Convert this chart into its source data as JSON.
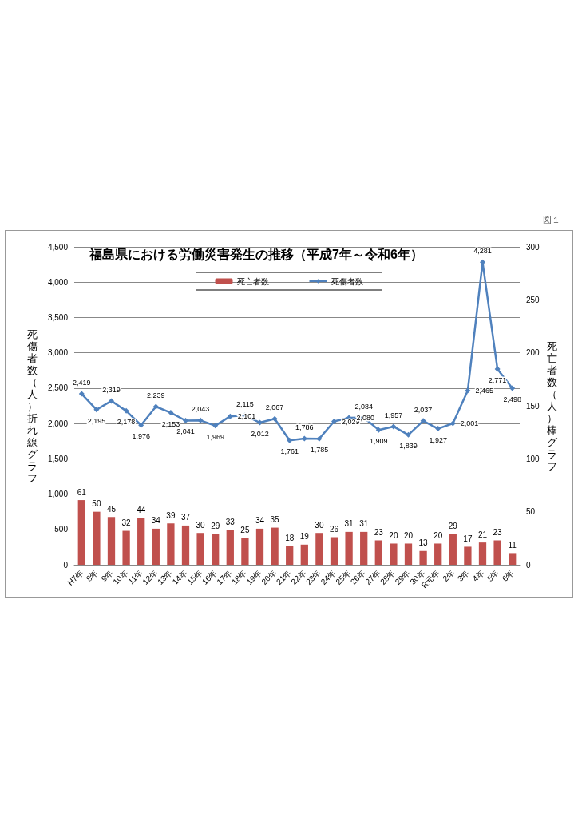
{
  "chart_data": {
    "type": "bar",
    "title": "福島県における労働災害発生の推移（平成7年～令和6年）",
    "categories": [
      "H7年",
      "8年",
      "9年",
      "10年",
      "11年",
      "12年",
      "13年",
      "14年",
      "15年",
      "16年",
      "17年",
      "18年",
      "19年",
      "20年",
      "21年",
      "22年",
      "23年",
      "24年",
      "25年",
      "26年",
      "27年",
      "28年",
      "29年",
      "30年",
      "R元年",
      "2年",
      "3年",
      "4年",
      "5年",
      "6年"
    ],
    "series": [
      {
        "name": "死亡者数",
        "axis": "y2",
        "color": "#c0504d",
        "values": [
          61,
          50,
          45,
          32,
          44,
          34,
          39,
          37,
          30,
          29,
          33,
          25,
          34,
          35,
          18,
          19,
          30,
          26,
          31,
          31,
          23,
          20,
          20,
          13,
          20,
          29,
          17,
          21,
          23,
          11
        ]
      },
      {
        "name": "死傷者数",
        "type": "line",
        "color": "#4f81bd",
        "values": [
          2419,
          2195,
          2319,
          2178,
          1976,
          2239,
          2153,
          2041,
          2043,
          1969,
          2101,
          2115,
          2012,
          2067,
          1761,
          1786,
          1785,
          2029,
          2080,
          2084,
          1909,
          1957,
          1839,
          2037,
          1927,
          2001,
          2465,
          4281,
          2771,
          2498
        ],
        "value_labels": [
          "2,419",
          "2,195",
          "2,319",
          "2,178",
          "1,976",
          "2,239",
          "2,153",
          "2,041",
          "2,043",
          "1,969",
          "2,101",
          "2,115",
          "2,012",
          "2,067",
          "1,761",
          "1,786",
          "1,785",
          "2,029",
          "2,080",
          "2,084",
          "1,909",
          "1,957",
          "1,839",
          "2,037",
          "1,927",
          "2,001",
          "2,465",
          "4,281",
          "2,771",
          "2,498"
        ]
      }
    ],
    "ylabel": "死傷者数（人）折れ線グラフ",
    "y2label": "死亡者数（人）棒グラフ",
    "ylim": [
      0,
      4500
    ],
    "yticks": [
      0,
      500,
      {
        "value": 1000,
        "label": "1,000"
      },
      {
        "value": 1500,
        "label": "1,500"
      },
      {
        "value": 2000,
        "label": "2,000"
      },
      {
        "value": 2500,
        "label": "2,500"
      },
      {
        "value": 3000,
        "label": "3,000"
      },
      {
        "value": 3500,
        "label": "3,500"
      },
      {
        "value": 4000,
        "label": "4,000"
      },
      {
        "value": 4500,
        "label": "4,500"
      }
    ],
    "y2lim": [
      0,
      300
    ],
    "y2ticks": [
      0,
      50,
      100,
      150,
      200,
      250,
      300
    ],
    "grid": "y",
    "legend": "top",
    "marker": "diamond",
    "line_style": "solid",
    "data_labels": true,
    "annotations": [
      "図１"
    ]
  }
}
